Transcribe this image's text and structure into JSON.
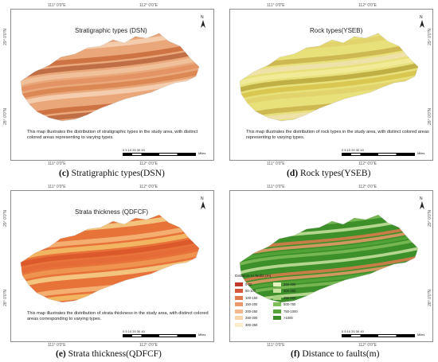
{
  "coords": {
    "lon1": "111° 0'0\"E",
    "lon2": "112° 0'0\"E",
    "lat1": "29° 0'0\"N",
    "lat2": "28° 0'0\"N"
  },
  "north_label": "N",
  "scale": {
    "nums": "0  5  10     20     30     40",
    "unit": "Miles"
  },
  "panels": [
    {
      "title": "Stratigraphic types (DSN)",
      "desc": "This map illustrates the distribution of stratigraphic types in the study area, with distinct colored areas representing to varying types.",
      "caption_letter": "(c)",
      "caption_text": "Stratigraphic types(DSN)"
    },
    {
      "title": "Rock types(YSEB)",
      "desc": "This map illustrates the distribution of  rock types in the study area, with distinct colored areas representing to varying types.",
      "caption_letter": "(d)",
      "caption_text": "Rock types(YSEB)"
    },
    {
      "title": "Strata thickness  (QDFCF)",
      "desc": "This map illustrates the distribution of strata thickness in the study area, with distinct colored areas corresponding to varying types.",
      "caption_letter": "(e)",
      "caption_text": "Strata thickness(QDFCF)"
    },
    {
      "title": "",
      "desc": "",
      "caption_letter": "(f)",
      "caption_text": "Distance to faults(m)"
    }
  ],
  "legend": {
    "title": "Distance to faults (m)",
    "items": [
      {
        "label": "0-50",
        "color": "#c0392b"
      },
      {
        "label": "50-100",
        "color": "#d4553a"
      },
      {
        "label": "100-150",
        "color": "#e07a4f"
      },
      {
        "label": "150-200",
        "color": "#ea9a6a"
      },
      {
        "label": "200-250",
        "color": "#f2b98a"
      },
      {
        "label": "250-300",
        "color": "#f7d6ab"
      },
      {
        "label": "300-350",
        "color": "#fbeccc"
      },
      {
        "label": "350-400",
        "color": "#e3f0c0"
      },
      {
        "label": "400-450",
        "color": "#c9e3a0"
      },
      {
        "label": "450-500",
        "color": "#a9d27f"
      },
      {
        "label": "500-750",
        "color": "#7fbd5a"
      },
      {
        "label": "750-1000",
        "color": "#56a63a"
      },
      {
        "label": ">1000",
        "color": "#3d8f2a"
      }
    ]
  },
  "palettes": {
    "dsn": [
      "#e9a77a",
      "#d9824d",
      "#f0c4a0",
      "#c96a3a",
      "#f4d3b6",
      "#e39060",
      "#b8643c"
    ],
    "yseb": [
      "#e8e07a",
      "#d6c24a",
      "#f2ec9c",
      "#c9b04a",
      "#e0d06a",
      "#b8a63c",
      "#efe2b0"
    ],
    "qdfcf": [
      "#e8733a",
      "#f09a55",
      "#d9552a",
      "#f6b97a",
      "#f5d28a",
      "#e46a38",
      "#f3c26a"
    ],
    "fault": [
      "#3d8f2a",
      "#56a63a",
      "#e07a4f",
      "#c9e3a0",
      "#7fbd5a",
      "#ea9a6a",
      "#3d8f2a"
    ]
  }
}
